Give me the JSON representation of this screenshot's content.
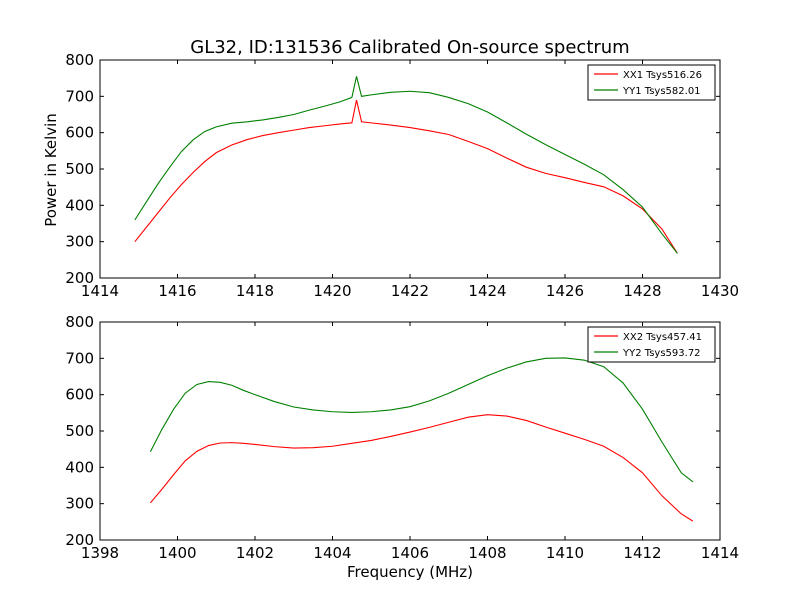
{
  "figure": {
    "title": "GL32, ID:131536 Calibrated On-source spectrum",
    "ylabel": "Power in Kelvin",
    "xlabel": "Frequency (MHz)"
  },
  "chart_data": [
    {
      "type": "line",
      "xlim": [
        1414,
        1430
      ],
      "ylim": [
        200,
        800
      ],
      "xticks": [
        1414,
        1416,
        1418,
        1420,
        1422,
        1424,
        1426,
        1428,
        1430
      ],
      "yticks": [
        200,
        300,
        400,
        500,
        600,
        700,
        800
      ],
      "grid": false,
      "legend_position": "top-right",
      "series": [
        {
          "name": "XX1 Tsys516.26",
          "color": "#ff0000",
          "x": [
            1414.9,
            1415.2,
            1415.5,
            1415.8,
            1416.1,
            1416.4,
            1416.7,
            1417.0,
            1417.4,
            1417.8,
            1418.2,
            1418.6,
            1419.0,
            1419.4,
            1419.8,
            1420.2,
            1420.5,
            1420.62,
            1420.75,
            1421.0,
            1421.5,
            1422.0,
            1422.5,
            1423.0,
            1423.5,
            1424.0,
            1424.5,
            1425.0,
            1425.5,
            1426.0,
            1426.5,
            1427.0,
            1427.5,
            1428.0,
            1428.5,
            1428.9
          ],
          "y": [
            300,
            340,
            380,
            420,
            457,
            490,
            520,
            545,
            566,
            581,
            592,
            600,
            607,
            614,
            619,
            624,
            627,
            690,
            630,
            627,
            621,
            614,
            605,
            595,
            576,
            556,
            530,
            505,
            488,
            476,
            463,
            451,
            426,
            390,
            335,
            268
          ]
        },
        {
          "name": "YY1 Tsys582.01",
          "color": "#008000",
          "x": [
            1414.9,
            1415.2,
            1415.5,
            1415.8,
            1416.1,
            1416.4,
            1416.7,
            1417.0,
            1417.4,
            1417.8,
            1418.2,
            1418.6,
            1419.0,
            1419.4,
            1419.8,
            1420.2,
            1420.5,
            1420.62,
            1420.75,
            1421.0,
            1421.5,
            1422.0,
            1422.5,
            1423.0,
            1423.5,
            1424.0,
            1424.5,
            1425.0,
            1425.5,
            1426.0,
            1426.5,
            1427.0,
            1427.5,
            1428.0,
            1428.5,
            1428.9
          ],
          "y": [
            360,
            410,
            460,
            505,
            548,
            580,
            603,
            616,
            626,
            630,
            635,
            642,
            650,
            662,
            673,
            685,
            697,
            755,
            700,
            704,
            711,
            714,
            710,
            697,
            680,
            657,
            627,
            596,
            567,
            540,
            513,
            484,
            443,
            395,
            322,
            268
          ]
        }
      ]
    },
    {
      "type": "line",
      "xlim": [
        1398,
        1414
      ],
      "ylim": [
        200,
        800
      ],
      "xticks": [
        1398,
        1400,
        1402,
        1404,
        1406,
        1408,
        1410,
        1412,
        1414
      ],
      "yticks": [
        200,
        300,
        400,
        500,
        600,
        700,
        800
      ],
      "grid": false,
      "legend_position": "top-right",
      "series": [
        {
          "name": "XX2 Tsys457.41",
          "color": "#ff0000",
          "x": [
            1399.3,
            1399.6,
            1399.9,
            1400.2,
            1400.5,
            1400.8,
            1401.1,
            1401.4,
            1401.7,
            1402.0,
            1402.5,
            1403.0,
            1403.5,
            1404.0,
            1404.5,
            1405.0,
            1405.5,
            1406.0,
            1406.5,
            1407.0,
            1407.5,
            1408.0,
            1408.5,
            1409.0,
            1409.5,
            1410.0,
            1410.5,
            1411.0,
            1411.5,
            1412.0,
            1412.5,
            1413.0,
            1413.3
          ],
          "y": [
            302,
            340,
            380,
            418,
            444,
            460,
            467,
            468,
            466,
            463,
            457,
            453,
            454,
            458,
            466,
            474,
            485,
            497,
            510,
            524,
            538,
            545,
            541,
            529,
            511,
            494,
            477,
            458,
            427,
            385,
            322,
            272,
            252
          ]
        },
        {
          "name": "YY2 Tsys593.72",
          "color": "#008000",
          "x": [
            1399.3,
            1399.6,
            1399.9,
            1400.2,
            1400.5,
            1400.8,
            1401.1,
            1401.4,
            1401.7,
            1402.0,
            1402.5,
            1403.0,
            1403.5,
            1404.0,
            1404.5,
            1405.0,
            1405.5,
            1406.0,
            1406.5,
            1407.0,
            1407.5,
            1408.0,
            1408.5,
            1409.0,
            1409.5,
            1410.0,
            1410.5,
            1411.0,
            1411.5,
            1412.0,
            1412.5,
            1413.0,
            1413.3
          ],
          "y": [
            443,
            505,
            560,
            604,
            628,
            636,
            634,
            626,
            612,
            600,
            581,
            566,
            558,
            553,
            551,
            553,
            558,
            567,
            583,
            604,
            628,
            652,
            673,
            690,
            700,
            701,
            695,
            677,
            632,
            560,
            470,
            385,
            360
          ]
        }
      ]
    }
  ]
}
